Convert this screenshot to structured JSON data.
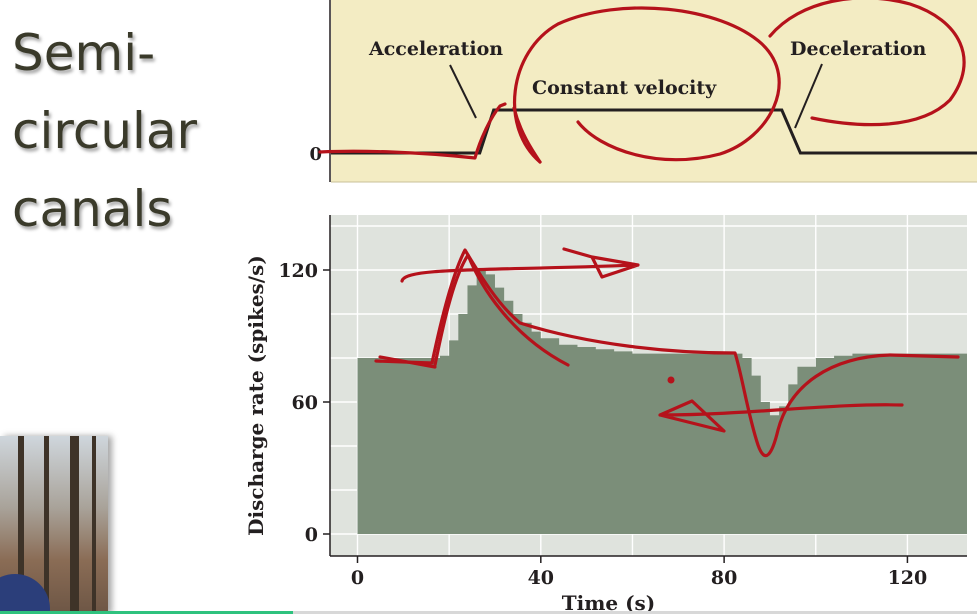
{
  "slide": {
    "title_lines": [
      "Semi-",
      "circular",
      "canals"
    ]
  },
  "colors": {
    "velocity_panel_bg": "#f3ecc3",
    "rate_chart_bg": "#dfe3dd",
    "histogram_fill": "#7b8e79",
    "annotation_ink": "#b5121b"
  },
  "velocity_panel": {
    "labels": {
      "acceleration": "Acceleration",
      "constant_velocity": "Constant velocity",
      "deceleration": "Deceleration"
    },
    "y_tick": "0"
  },
  "chart_data": {
    "type": "area",
    "xlabel": "Time (s)",
    "ylabel": "Discharge rate (spikes/s)",
    "xlim": [
      -6,
      133
    ],
    "ylim": [
      -10,
      145
    ],
    "x_ticks": [
      0,
      40,
      80,
      120
    ],
    "y_ticks": [
      0,
      60,
      120
    ],
    "x_tick_labels": [
      "0",
      "40",
      "80",
      "120"
    ],
    "y_tick_labels": [
      "0",
      "60",
      "120"
    ],
    "grid": true,
    "series": [
      {
        "x": [
          0,
          6,
          12,
          18,
          20,
          22,
          24,
          26,
          28,
          30,
          32,
          34,
          36,
          38,
          40,
          44,
          48,
          52,
          56,
          60,
          64,
          68,
          72,
          76,
          80,
          84,
          86,
          88,
          90,
          92,
          94,
          96,
          100,
          104,
          108,
          112,
          116,
          120,
          124,
          128,
          132
        ],
        "y": [
          80,
          80,
          80,
          81,
          88,
          100,
          113,
          120,
          118,
          112,
          106,
          100,
          96,
          92,
          89,
          86,
          85,
          84,
          83,
          82,
          82,
          82,
          82,
          82,
          82,
          80,
          72,
          60,
          54,
          58,
          68,
          76,
          80,
          81,
          82,
          82,
          82,
          82,
          82,
          82,
          82
        ]
      }
    ]
  },
  "velocity_profile": {
    "x": [
      -6,
      26,
      29,
      91,
      95,
      133
    ],
    "y": [
      0,
      0,
      1,
      1,
      0,
      0
    ]
  }
}
